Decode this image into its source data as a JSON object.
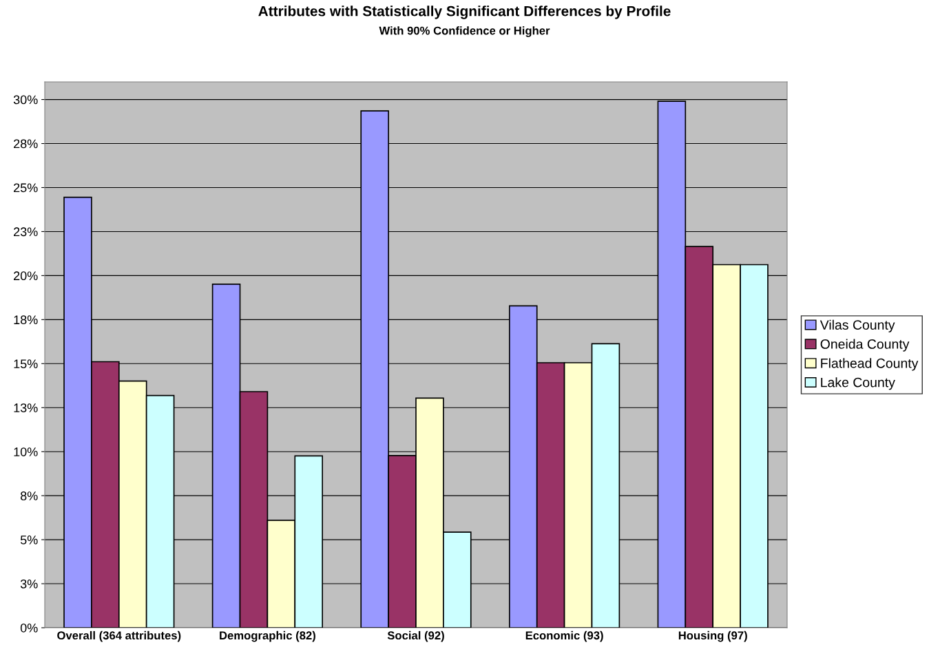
{
  "chart_data": {
    "type": "bar",
    "title": "Attributes with Statistically Significant Differences by Profile",
    "subtitle": "With 90% Confidence or Higher",
    "categories": [
      "Overall (364 attributes)",
      "Demographic (82)",
      "Social (92)",
      "Economic (93)",
      "Housing (97)"
    ],
    "series": [
      {
        "name": "Vilas County",
        "color": "#9999ff",
        "values": [
          24.45,
          19.51,
          29.35,
          18.28,
          29.9
        ]
      },
      {
        "name": "Oneida County",
        "color": "#993366",
        "values": [
          15.11,
          13.41,
          9.78,
          15.05,
          21.65
        ]
      },
      {
        "name": "Flathead County",
        "color": "#ffffcc",
        "values": [
          14.01,
          6.1,
          13.04,
          15.05,
          20.62
        ]
      },
      {
        "name": "Lake County",
        "color": "#ccffff",
        "values": [
          13.19,
          9.76,
          5.43,
          16.13,
          20.62
        ]
      }
    ],
    "ylim": [
      0,
      31
    ],
    "yticks": [
      {
        "value": 0,
        "label": "0%"
      },
      {
        "value": 2.5,
        "label": "3%"
      },
      {
        "value": 5,
        "label": "5%"
      },
      {
        "value": 7.5,
        "label": "8%"
      },
      {
        "value": 10,
        "label": "10%"
      },
      {
        "value": 12.5,
        "label": "13%"
      },
      {
        "value": 15,
        "label": "15%"
      },
      {
        "value": 17.5,
        "label": "18%"
      },
      {
        "value": 20,
        "label": "20%"
      },
      {
        "value": 22.5,
        "label": "23%"
      },
      {
        "value": 25,
        "label": "25%"
      },
      {
        "value": 27.5,
        "label": "28%"
      },
      {
        "value": 30,
        "label": "30%"
      }
    ],
    "grid": "y",
    "legend": "right"
  }
}
